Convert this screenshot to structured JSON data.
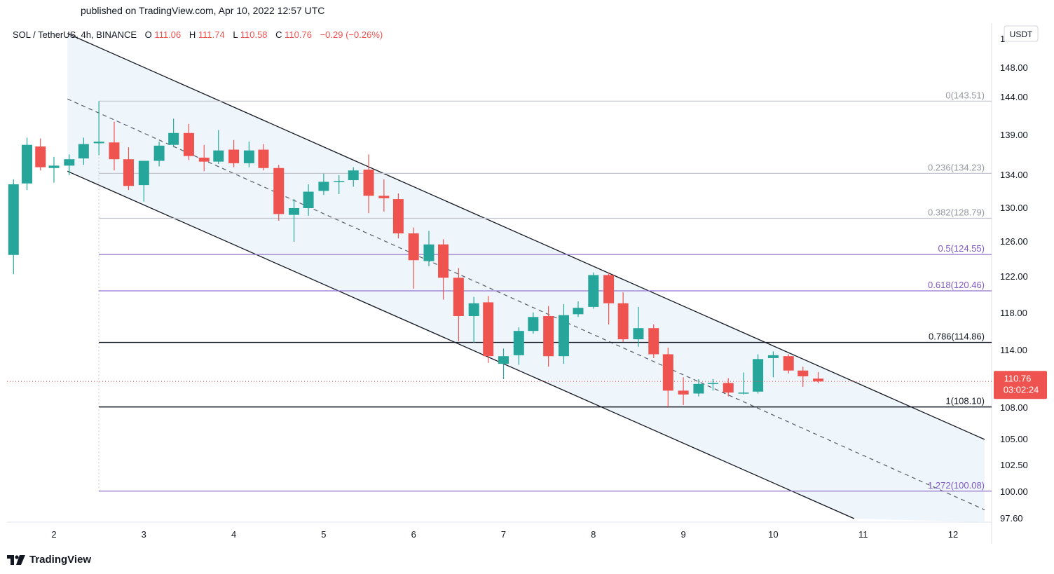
{
  "published": "published on TradingView.com, Apr 10, 2022 12:57 UTC",
  "footer_brand": "TradingView",
  "legend": {
    "symbol": "SOL / TetherUS, 4h, BINANCE",
    "o_label": "O",
    "o_value": "111.06",
    "h_label": "H",
    "h_value": "111.74",
    "l_label": "L",
    "l_value": "110.58",
    "c_label": "C",
    "c_value": "110.76",
    "change": "−0.29 (−0.26%)"
  },
  "currency": "USDT",
  "last_price": {
    "value": "110.76",
    "countdown": "03:02:24",
    "color": "#ef5350"
  },
  "colors": {
    "up": "#26a69a",
    "down": "#ef5350",
    "channel_fill": "#eef6fc",
    "fib_gray": "#c3c6ce",
    "fib_purple": "#9575cd",
    "fib_black": "#131722"
  },
  "chart_data": {
    "type": "candlestick",
    "timeframe": "4h",
    "ylim": [
      97.6,
      152
    ],
    "y_ticks": [
      "1",
      "148.00",
      "144.00",
      "139.00",
      "134.00",
      "130.00",
      "126.00",
      "122.00",
      "118.00",
      "114.00",
      "108.00",
      "105.00",
      "102.50",
      "100.00",
      "97.60"
    ],
    "x_ticks": [
      "2",
      "3",
      "4",
      "5",
      "6",
      "7",
      "8",
      "9",
      "10",
      "11",
      "12"
    ],
    "fib_levels": [
      {
        "label": "0(143.51)",
        "value": 143.51,
        "style": "gray"
      },
      {
        "label": "0.236(134.23)",
        "value": 134.23,
        "style": "gray"
      },
      {
        "label": "0.382(128.79)",
        "value": 128.79,
        "style": "gray"
      },
      {
        "label": "0.5(124.55)",
        "value": 124.55,
        "style": "purple"
      },
      {
        "label": "0.618(120.46)",
        "value": 120.46,
        "style": "purple"
      },
      {
        "label": "0.786(114.86)",
        "value": 114.86,
        "style": "black"
      },
      {
        "label": "1(108.10)",
        "value": 108.1,
        "style": "black"
      },
      {
        "label": "1.272(100.08)",
        "value": 100.08,
        "style": "purple"
      }
    ],
    "channel": {
      "upper": [
        [
          2.15,
          152.8
        ],
        [
          12.35,
          105.0
        ]
      ],
      "middle": [
        [
          2.15,
          143.8
        ],
        [
          12.35,
          98.4
        ]
      ],
      "lower": [
        [
          2.15,
          134.5
        ],
        [
          10.9,
          97.6
        ]
      ]
    },
    "candles": [
      {
        "x": 1.55,
        "o": 124.5,
        "h": 133.5,
        "l": 122.3,
        "c": 132.9
      },
      {
        "x": 1.7,
        "o": 133.0,
        "h": 138.7,
        "l": 132.2,
        "c": 137.8
      },
      {
        "x": 1.85,
        "o": 137.6,
        "h": 138.6,
        "l": 134.6,
        "c": 135.0
      },
      {
        "x": 2.0,
        "o": 134.9,
        "h": 136.3,
        "l": 133.1,
        "c": 135.2
      },
      {
        "x": 2.17,
        "o": 135.2,
        "h": 136.6,
        "l": 134.0,
        "c": 136.0
      },
      {
        "x": 2.33,
        "o": 136.1,
        "h": 138.7,
        "l": 135.3,
        "c": 137.9
      },
      {
        "x": 2.5,
        "o": 138.0,
        "h": 143.5,
        "l": 136.5,
        "c": 138.2
      },
      {
        "x": 2.67,
        "o": 138.1,
        "h": 140.8,
        "l": 134.6,
        "c": 136.0
      },
      {
        "x": 2.83,
        "o": 136.0,
        "h": 137.5,
        "l": 132.2,
        "c": 132.7
      },
      {
        "x": 3.0,
        "o": 132.8,
        "h": 135.6,
        "l": 130.8,
        "c": 135.8
      },
      {
        "x": 3.17,
        "o": 135.8,
        "h": 138.2,
        "l": 135.1,
        "c": 137.7
      },
      {
        "x": 3.33,
        "o": 137.8,
        "h": 141.2,
        "l": 137.6,
        "c": 139.3
      },
      {
        "x": 3.5,
        "o": 139.3,
        "h": 140.5,
        "l": 135.9,
        "c": 136.4
      },
      {
        "x": 3.67,
        "o": 136.2,
        "h": 137.8,
        "l": 134.5,
        "c": 135.7
      },
      {
        "x": 3.83,
        "o": 135.7,
        "h": 139.7,
        "l": 135.4,
        "c": 137.1
      },
      {
        "x": 4.0,
        "o": 137.2,
        "h": 138.4,
        "l": 135.0,
        "c": 135.5
      },
      {
        "x": 4.17,
        "o": 135.5,
        "h": 138.2,
        "l": 135.0,
        "c": 137.1
      },
      {
        "x": 4.33,
        "o": 137.2,
        "h": 137.9,
        "l": 134.6,
        "c": 134.9
      },
      {
        "x": 4.5,
        "o": 134.9,
        "h": 135.3,
        "l": 128.5,
        "c": 129.3
      },
      {
        "x": 4.67,
        "o": 129.2,
        "h": 131.1,
        "l": 126.0,
        "c": 130.0
      },
      {
        "x": 4.83,
        "o": 130.0,
        "h": 132.9,
        "l": 129.1,
        "c": 132.0
      },
      {
        "x": 5.0,
        "o": 132.1,
        "h": 134.2,
        "l": 131.6,
        "c": 133.2
      },
      {
        "x": 5.17,
        "o": 133.3,
        "h": 134.0,
        "l": 131.7,
        "c": 133.3
      },
      {
        "x": 5.33,
        "o": 133.4,
        "h": 135.0,
        "l": 132.6,
        "c": 134.6
      },
      {
        "x": 5.5,
        "o": 134.7,
        "h": 136.6,
        "l": 129.4,
        "c": 131.5
      },
      {
        "x": 5.67,
        "o": 131.5,
        "h": 133.5,
        "l": 129.6,
        "c": 131.2
      },
      {
        "x": 5.83,
        "o": 131.1,
        "h": 131.8,
        "l": 126.4,
        "c": 127.0
      },
      {
        "x": 6.0,
        "o": 127.0,
        "h": 127.7,
        "l": 120.7,
        "c": 123.9
      },
      {
        "x": 6.17,
        "o": 123.8,
        "h": 127.3,
        "l": 123.2,
        "c": 125.7
      },
      {
        "x": 6.33,
        "o": 125.7,
        "h": 126.3,
        "l": 119.5,
        "c": 121.9
      },
      {
        "x": 6.5,
        "o": 121.9,
        "h": 123.0,
        "l": 115.0,
        "c": 117.7
      },
      {
        "x": 6.67,
        "o": 117.7,
        "h": 119.8,
        "l": 114.8,
        "c": 119.1
      },
      {
        "x": 6.83,
        "o": 119.2,
        "h": 119.9,
        "l": 112.7,
        "c": 113.4
      },
      {
        "x": 7.0,
        "o": 112.6,
        "h": 114.2,
        "l": 111.0,
        "c": 113.4
      },
      {
        "x": 7.17,
        "o": 113.5,
        "h": 116.5,
        "l": 112.5,
        "c": 116.1
      },
      {
        "x": 7.33,
        "o": 116.1,
        "h": 118.1,
        "l": 115.8,
        "c": 117.6
      },
      {
        "x": 7.5,
        "o": 117.7,
        "h": 118.8,
        "l": 112.3,
        "c": 113.4
      },
      {
        "x": 7.67,
        "o": 113.4,
        "h": 119.0,
        "l": 112.6,
        "c": 117.8
      },
      {
        "x": 7.83,
        "o": 117.9,
        "h": 119.3,
        "l": 117.6,
        "c": 118.6
      },
      {
        "x": 8.0,
        "o": 118.7,
        "h": 122.5,
        "l": 118.5,
        "c": 122.2
      },
      {
        "x": 8.17,
        "o": 122.2,
        "h": 122.5,
        "l": 116.8,
        "c": 119.1
      },
      {
        "x": 8.33,
        "o": 119.1,
        "h": 120.3,
        "l": 114.9,
        "c": 115.2
      },
      {
        "x": 8.5,
        "o": 115.2,
        "h": 118.7,
        "l": 114.4,
        "c": 116.4
      },
      {
        "x": 8.67,
        "o": 116.4,
        "h": 116.8,
        "l": 113.2,
        "c": 113.6
      },
      {
        "x": 8.83,
        "o": 113.6,
        "h": 114.3,
        "l": 108.1,
        "c": 109.8
      },
      {
        "x": 9.0,
        "o": 109.8,
        "h": 111.2,
        "l": 108.3,
        "c": 109.4
      },
      {
        "x": 9.17,
        "o": 109.5,
        "h": 111.0,
        "l": 109.2,
        "c": 110.5
      },
      {
        "x": 9.33,
        "o": 110.6,
        "h": 111.0,
        "l": 109.8,
        "c": 110.6
      },
      {
        "x": 9.5,
        "o": 110.6,
        "h": 111.1,
        "l": 109.2,
        "c": 109.6
      },
      {
        "x": 9.67,
        "o": 109.5,
        "h": 111.7,
        "l": 109.4,
        "c": 109.6
      },
      {
        "x": 9.83,
        "o": 109.7,
        "h": 113.6,
        "l": 109.5,
        "c": 113.1
      },
      {
        "x": 10.0,
        "o": 113.2,
        "h": 113.9,
        "l": 111.2,
        "c": 113.5
      },
      {
        "x": 10.17,
        "o": 113.4,
        "h": 113.6,
        "l": 111.6,
        "c": 111.9
      },
      {
        "x": 10.33,
        "o": 111.9,
        "h": 112.3,
        "l": 110.2,
        "c": 111.3
      },
      {
        "x": 10.5,
        "o": 111.06,
        "h": 111.74,
        "l": 110.58,
        "c": 110.76
      }
    ]
  }
}
